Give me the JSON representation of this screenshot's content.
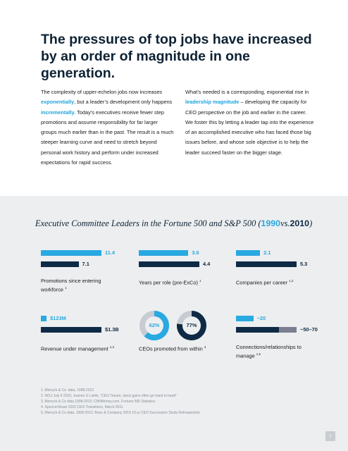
{
  "header": {
    "title": "The pressures of top jobs have increased by an order of magnitude in one generation."
  },
  "body": {
    "left": [
      "The complexity of upper-echelon jobs now increases ",
      "exponentially",
      ", but a leader’s development only happens ",
      "incrementally.",
      " Today’s executives receive fewer step promotions and assume responsibility for far larger groups much earlier than in the past. The result is a much steeper learning curve and need to stretch beyond personal work history and perform under increased expectations for rapid success."
    ],
    "right": [
      "What’s needed is a corresponding, exponential rise in ",
      "leadership magnitude",
      " – developing the capacity for CEO perspective on the job and earlier in the career. We foster this by letting a leader tap into the experience of an accomplished executive who has faced those big issues before, and whose sole objective is to help the leader succeed faster on the bigger stage."
    ]
  },
  "infographic": {
    "title": "Executive Committee Leaders in the Fortune 500 and S&P 500 (",
    "vs": "vs.",
    "title_end": ")",
    "series": [
      {
        "name": "1990",
        "color": "#29a9e1"
      },
      {
        "name": "2010",
        "color": "#0f2a45"
      }
    ],
    "range_color": "#7b8090",
    "panels": [
      {
        "type": "bar",
        "label": "Promotions since entering workforce",
        "note": "1",
        "values": [
          11.4,
          7.1
        ]
      },
      {
        "type": "bar",
        "label": "Years per role (pre-ExCo)",
        "note": "1",
        "values": [
          3.6,
          4.4
        ]
      },
      {
        "type": "bar",
        "label": "Companies per career",
        "note": "1,2",
        "values": [
          2.1,
          5.3
        ]
      },
      {
        "type": "bar",
        "label": "Revenue under management",
        "note": "1,3",
        "values": [
          123,
          1300
        ],
        "value_labels": [
          "$123M",
          "$1.3B"
        ]
      },
      {
        "type": "pie",
        "label": "CEOs promoted from within",
        "note": "4",
        "values": [
          62,
          77
        ],
        "value_labels": [
          "62%",
          "77%"
        ]
      },
      {
        "type": "bar",
        "label": "Connections/relationships to manage",
        "note": "1,5",
        "values": [
          20,
          [
            50,
            70
          ]
        ],
        "value_labels": [
          "~20",
          "~50–70"
        ]
      }
    ]
  },
  "footnotes": [
    "1. Merryck & Co. data, 1998-2012",
    "2. WSJ July 6 2010, Joanne S Lublin, “CEO Tenure, stock gains often go hand in hand”",
    "3. Merryck & Co data 1998-2012; CNNMoney.com, Fortune 500 Statistics",
    "4. SpencerStuart 2010 CEO Transitions, March 2011",
    "5. Merryck & Co data, 1998-2012;  Booz & Company 2010 10-yr CEO Succession Study Retrospective"
  ],
  "page_number": "1"
}
